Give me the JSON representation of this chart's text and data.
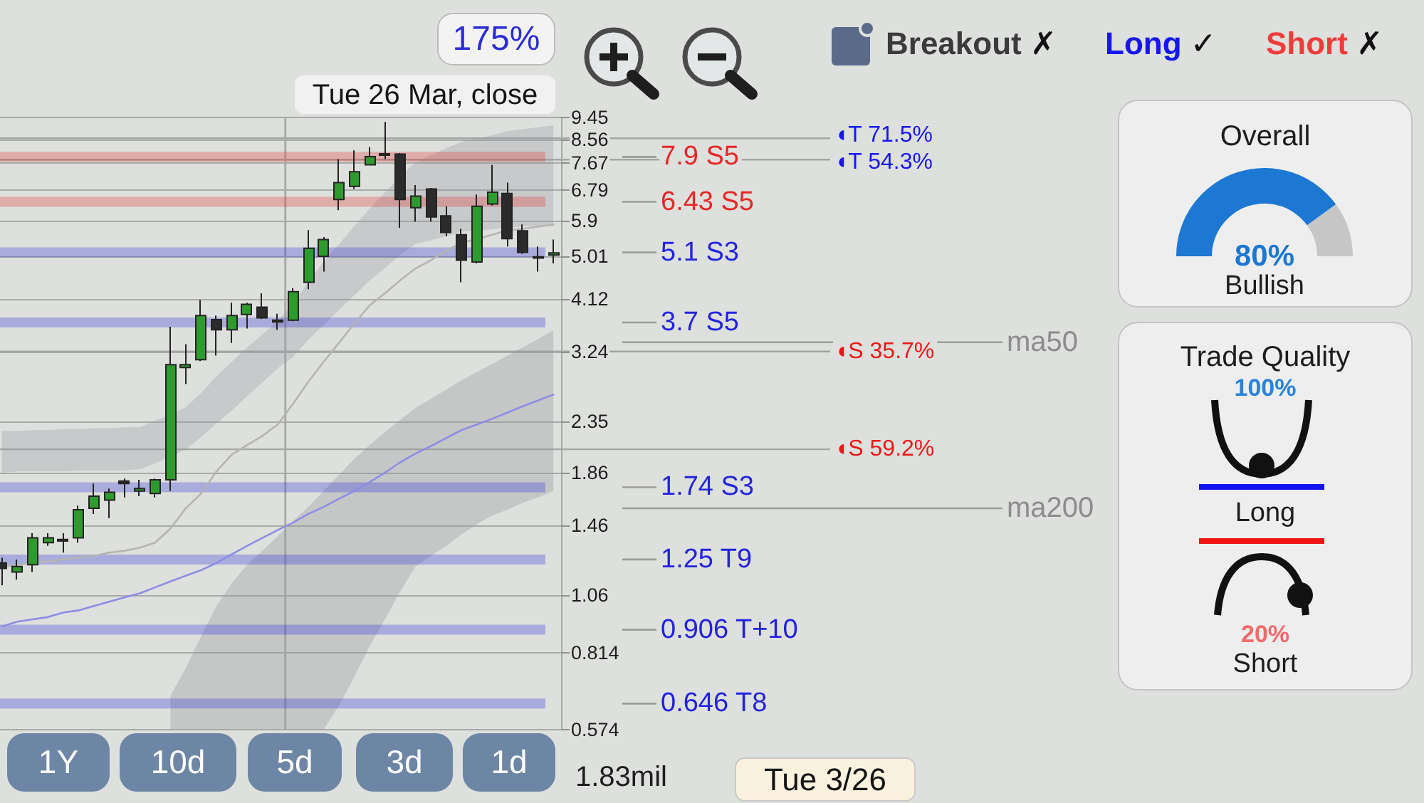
{
  "chart_data": [
    {
      "type": "candlestick",
      "categories": [
        null,
        null,
        null,
        null,
        null,
        null,
        null,
        null,
        null,
        null,
        null,
        null,
        null,
        null,
        null,
        null,
        null,
        null,
        null,
        null,
        null,
        null,
        null,
        null,
        null,
        null,
        null,
        null,
        null,
        null,
        null,
        null,
        null,
        null,
        null,
        null,
        null
      ],
      "series": [
        {
          "type": "candlestick",
          "ohlc": [
            [
              1.23,
              1.26,
              1.11,
              1.2
            ],
            [
              1.18,
              1.25,
              1.14,
              1.21
            ],
            [
              1.22,
              1.41,
              1.18,
              1.38
            ],
            [
              1.35,
              1.41,
              1.33,
              1.38
            ],
            [
              1.37,
              1.41,
              1.29,
              1.36
            ],
            [
              1.38,
              1.6,
              1.35,
              1.57
            ],
            [
              1.58,
              1.77,
              1.54,
              1.67
            ],
            [
              1.64,
              1.73,
              1.51,
              1.7
            ],
            [
              1.79,
              1.81,
              1.66,
              1.77
            ],
            [
              1.71,
              1.8,
              1.67,
              1.73
            ],
            [
              1.69,
              1.81,
              1.66,
              1.8
            ],
            [
              1.8,
              3.63,
              1.71,
              3.05
            ],
            [
              3.01,
              3.35,
              2.79,
              3.05
            ],
            [
              3.12,
              4.1,
              3.1,
              3.82
            ],
            [
              3.75,
              3.82,
              3.18,
              3.58
            ],
            [
              3.58,
              4.05,
              3.37,
              3.82
            ],
            [
              3.84,
              4.05,
              3.6,
              4.02
            ],
            [
              3.97,
              4.23,
              3.76,
              3.78
            ],
            [
              3.74,
              3.85,
              3.58,
              3.71
            ],
            [
              3.74,
              4.33,
              3.72,
              4.26
            ],
            [
              4.45,
              5.65,
              4.31,
              5.2
            ],
            [
              5.01,
              5.47,
              4.67,
              5.41
            ],
            [
              6.5,
              7.82,
              6.19,
              7.02
            ],
            [
              6.9,
              8.14,
              6.82,
              7.38
            ],
            [
              7.62,
              8.26,
              7.6,
              7.91
            ],
            [
              8.01,
              9.27,
              7.82,
              7.96
            ],
            [
              8.0,
              8.04,
              5.71,
              6.5
            ],
            [
              6.26,
              6.94,
              5.87,
              6.6
            ],
            [
              6.82,
              6.85,
              5.87,
              6.0
            ],
            [
              6.03,
              6.3,
              5.49,
              5.59
            ],
            [
              5.53,
              5.68,
              4.45,
              4.92
            ],
            [
              4.88,
              6.65,
              4.85,
              6.3
            ],
            [
              6.37,
              7.61,
              6.32,
              6.72
            ],
            [
              6.68,
              7.02,
              5.24,
              5.43
            ],
            [
              5.63,
              5.8,
              5.07,
              5.1
            ],
            [
              5.0,
              5.24,
              4.67,
              4.97
            ],
            [
              5.04,
              5.41,
              4.85,
              5.09
            ]
          ],
          "colors": [
            "#2b2b2b",
            "#2e9b2e",
            "#2e9b2e",
            "#2e9b2e",
            "#2b2b2b",
            "#2e9b2e",
            "#2e9b2e",
            "#2e9b2e",
            "#2b2b2b",
            "#2e9b2e",
            "#2e9b2e",
            "#2e9b2e",
            "#2e9b2e",
            "#2e9b2e",
            "#2b2b2b",
            "#2e9b2e",
            "#2e9b2e",
            "#2b2b2b",
            "#2b2b2b",
            "#2e9b2e",
            "#2e9b2e",
            "#2e9b2e",
            "#2e9b2e",
            "#2e9b2e",
            "#2e9b2e",
            "#2b2b2b",
            "#2b2b2b",
            "#2e9b2e",
            "#2b2b2b",
            "#2b2b2b",
            "#2b2b2b",
            "#2e9b2e",
            "#2e9b2e",
            "#2b2b2b",
            "#2b2b2b",
            "#2b2b2b",
            "#2e9b2e"
          ]
        },
        {
          "type": "line",
          "color": "#b4b5b3",
          "values": [
            1.21,
            1.22,
            1.23,
            1.24,
            1.25,
            1.26,
            1.27,
            1.29,
            1.3,
            1.32,
            1.35,
            1.44,
            1.58,
            1.69,
            1.87,
            2.02,
            2.11,
            2.2,
            2.32,
            2.55,
            2.82,
            3.09,
            3.37,
            3.68,
            4.0,
            4.23,
            4.49,
            4.74,
            4.92,
            5.14,
            5.33,
            5.42,
            5.53,
            5.64,
            5.68,
            5.74,
            5.79
          ],
          "lower": [
            1.86,
            1.87,
            1.87,
            1.87,
            1.87,
            1.88,
            1.88,
            1.88,
            1.88,
            1.89,
            1.94,
            2.0,
            2.07,
            2.19,
            2.33,
            2.47,
            2.64,
            2.81,
            3.0,
            3.16,
            3.42,
            3.66,
            3.92,
            4.19,
            4.48,
            4.75,
            5.04,
            5.3,
            5.39,
            5.49,
            5.61,
            5.63,
            5.67,
            5.71,
            5.74,
            5.76,
            5.78
          ],
          "upper": [
            2.25,
            2.25,
            2.26,
            2.26,
            2.27,
            2.27,
            2.28,
            2.28,
            2.29,
            2.29,
            2.36,
            2.43,
            2.51,
            2.68,
            2.89,
            3.09,
            3.3,
            3.5,
            3.72,
            4.04,
            4.45,
            4.88,
            5.29,
            5.75,
            6.23,
            6.71,
            7.23,
            7.71,
            7.96,
            8.22,
            8.46,
            8.58,
            8.72,
            8.89,
            8.97,
            9.05,
            9.13
          ]
        },
        {
          "type": "line",
          "color": "#8d8de6",
          "values": [
            0.92,
            0.94,
            0.95,
            0.96,
            0.98,
            0.99,
            1.01,
            1.03,
            1.05,
            1.07,
            1.1,
            1.13,
            1.16,
            1.19,
            1.23,
            1.28,
            1.33,
            1.38,
            1.43,
            1.48,
            1.54,
            1.59,
            1.65,
            1.71,
            1.78,
            1.86,
            1.95,
            2.03,
            2.1,
            2.18,
            2.26,
            2.32,
            2.38,
            2.45,
            2.52,
            2.59,
            2.66
          ],
          "lower": [
            null,
            null,
            null,
            null,
            null,
            null,
            null,
            null,
            null,
            null,
            null,
            0.574,
            0.574,
            0.574,
            0.574,
            0.574,
            0.574,
            0.574,
            0.574,
            0.574,
            0.574,
            0.574,
            0.64,
            0.73,
            0.84,
            0.95,
            1.08,
            1.21,
            1.27,
            1.33,
            1.4,
            1.47,
            1.53,
            1.57,
            1.62,
            1.66,
            1.71
          ],
          "upper": [
            null,
            null,
            null,
            null,
            null,
            null,
            null,
            null,
            null,
            null,
            null,
            0.67,
            0.76,
            0.88,
            1.01,
            1.12,
            1.22,
            1.3,
            1.39,
            1.49,
            1.59,
            1.71,
            1.84,
            1.98,
            2.11,
            2.24,
            2.37,
            2.5,
            2.61,
            2.72,
            2.84,
            2.95,
            3.06,
            3.18,
            3.3,
            3.43,
            3.57
          ]
        }
      ],
      "ylim": [
        0.574,
        9.45
      ],
      "yticks": [
        0.574,
        0.814,
        1.06,
        1.46,
        1.86,
        2.35,
        3.24,
        4.12,
        5.01,
        5.9,
        6.79,
        7.67,
        8.56,
        9.45
      ],
      "log": "y",
      "grid": "y",
      "tick_labels": "y",
      "ref_lines": [
        {
          "axis": "y",
          "value": 7.9,
          "label": "7.9 S5",
          "color": "#e82626",
          "line_style": "solid"
        },
        {
          "axis": "y",
          "value": 6.43,
          "label": "6.43 S5",
          "color": "#e82626",
          "line_style": "solid"
        },
        {
          "axis": "y",
          "value": 5.1,
          "label": "5.1 S3",
          "color": "#2323df",
          "line_style": "solid"
        },
        {
          "axis": "y",
          "value": 3.7,
          "label": "3.7 S5",
          "color": "#2323df",
          "line_style": "solid"
        },
        {
          "axis": "y",
          "value": 1.74,
          "label": "1.74 S3",
          "color": "#2323df",
          "line_style": "solid"
        },
        {
          "axis": "y",
          "value": 1.25,
          "label": "1.25 T9",
          "color": "#2323df",
          "line_style": "solid"
        },
        {
          "axis": "y",
          "value": 0.906,
          "label": "0.906 T+10",
          "color": "#2323df",
          "line_style": "solid"
        },
        {
          "axis": "y",
          "value": 0.646,
          "label": "0.646 T8",
          "color": "#2323df",
          "line_style": "solid"
        },
        {
          "axis": "y",
          "value": 8.6,
          "label": "◖T 71.5%",
          "color": "#a4a6a3"
        },
        {
          "axis": "y",
          "value": 7.8,
          "label": "◖T 54.3%",
          "color": "#a4a6a3"
        },
        {
          "axis": "y",
          "value": 3.24,
          "label": "◖S 35.7%",
          "color": "#a4a6a3"
        },
        {
          "axis": "y",
          "value": 2.07,
          "label": "◖S 59.2%",
          "color": "#a4a6a3"
        },
        {
          "axis": "y",
          "value": 3.38,
          "label": "ma50",
          "color": "#9b9d9a"
        },
        {
          "axis": "y",
          "value": 1.58,
          "label": "ma200",
          "color": "#9b9d9a"
        }
      ],
      "annotations": [
        "175%",
        "Tue 26 Mar, close",
        "Breakout ✗",
        "Long ✓",
        "Short ✗",
        "1Y",
        "10d",
        "5d",
        "3d",
        "1d",
        "1.83mil",
        "Tue 3/26"
      ]
    },
    {
      "type": "donut",
      "title": "Overall",
      "categories": [
        null,
        null
      ],
      "values": [
        80,
        20
      ],
      "colors": [
        "#1c78d2",
        "#c6c6c6"
      ],
      "value_labels": [
        "80%",
        null
      ],
      "annotations": [
        "Bullish"
      ]
    },
    {
      "type": "other",
      "title": "Trade Quality",
      "annotations": [
        "100%",
        "Long",
        "20%",
        "Short"
      ]
    }
  ]
}
